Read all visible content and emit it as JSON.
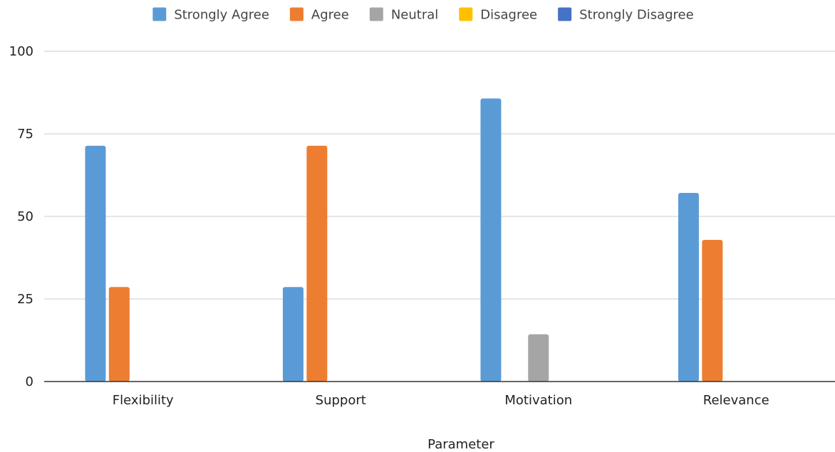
{
  "chart_data": {
    "type": "bar",
    "categories": [
      "Flexibility",
      "Support",
      "Motivation",
      "Relevance"
    ],
    "series": [
      {
        "name": "Strongly Agree",
        "color": "#5b9bd5",
        "values": [
          71.4,
          28.6,
          85.7,
          57.1
        ]
      },
      {
        "name": "Agree",
        "color": "#ed7d31",
        "values": [
          28.6,
          71.4,
          0,
          42.9
        ]
      },
      {
        "name": "Neutral",
        "color": "#a5a5a5",
        "values": [
          0,
          0,
          14.3,
          0
        ]
      },
      {
        "name": "Disagree",
        "color": "#ffc000",
        "values": [
          0,
          0,
          0,
          0
        ]
      },
      {
        "name": "Strongly Disagree",
        "color": "#4472c4",
        "values": [
          0,
          0,
          0,
          0
        ]
      }
    ],
    "title": "",
    "xlabel": "Parameter",
    "ylabel": "",
    "ylim": [
      0,
      100
    ],
    "yticks": [
      0,
      25,
      50,
      75,
      100
    ],
    "grid": true,
    "legend_position": "top"
  }
}
